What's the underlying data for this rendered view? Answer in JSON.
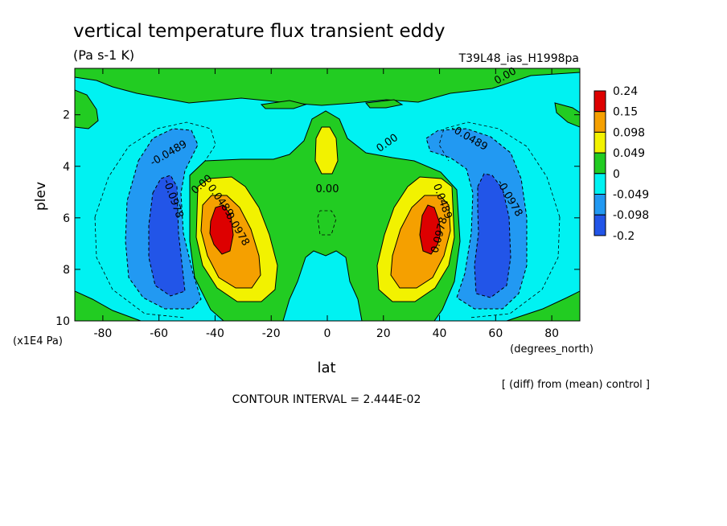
{
  "header": {
    "title": "vertical temperature flux transient eddy",
    "units": "(Pa s-1 K)",
    "run_id": "T39L48_ias_H1998pa"
  },
  "footer": {
    "diff_note": "[ (diff) from (mean) control ]",
    "contour_interval": "CONTOUR INTERVAL = 2.444E-02"
  },
  "chart_data": {
    "type": "heatmap",
    "xlabel": "lat",
    "x_units": "(degrees_north)",
    "ylabel": "plev",
    "y_units": "(x1E4 Pa)",
    "xlim": [
      -90,
      90
    ],
    "ylim": [
      10,
      0.2
    ],
    "x_ticks": [
      -80,
      -60,
      -40,
      -20,
      0,
      20,
      40,
      60,
      80
    ],
    "y_ticks": [
      2,
      4,
      6,
      8,
      10
    ],
    "colorbar": {
      "levels": [
        "0.24",
        "0.15",
        "0.098",
        "0.049",
        "0",
        "-0.049",
        "-0.098",
        "-0.2"
      ],
      "colors": [
        "#dd0000",
        "#f5a000",
        "#f2f200",
        "#22cc22",
        "#00f2f2",
        "#2299f2",
        "#2255e8"
      ]
    },
    "contour_labels": [
      {
        "text": "0.00",
        "lat": 64,
        "plev": 0.6
      },
      {
        "text": "-0.0489",
        "lat": -56,
        "plev": 3.6
      },
      {
        "text": "-0.0978",
        "lat": -56,
        "plev": 5.3
      },
      {
        "text": "0.00",
        "lat": -44,
        "plev": 4.8
      },
      {
        "text": "0.0489",
        "lat": -39,
        "plev": 5.4
      },
      {
        "text": "0.0978",
        "lat": -33,
        "plev": 6.5
      },
      {
        "text": "0.00",
        "lat": 22,
        "plev": 3.2
      },
      {
        "text": "-0.0489",
        "lat": 50,
        "plev": 3.0
      },
      {
        "text": "0.00",
        "lat": 0,
        "plev": 5.0
      },
      {
        "text": "0.0489",
        "lat": 40,
        "plev": 5.4
      },
      {
        "text": "0.0978",
        "lat": 41,
        "plev": 6.7
      },
      {
        "text": "-0.0978",
        "lat": 64,
        "plev": 5.3
      }
    ]
  }
}
